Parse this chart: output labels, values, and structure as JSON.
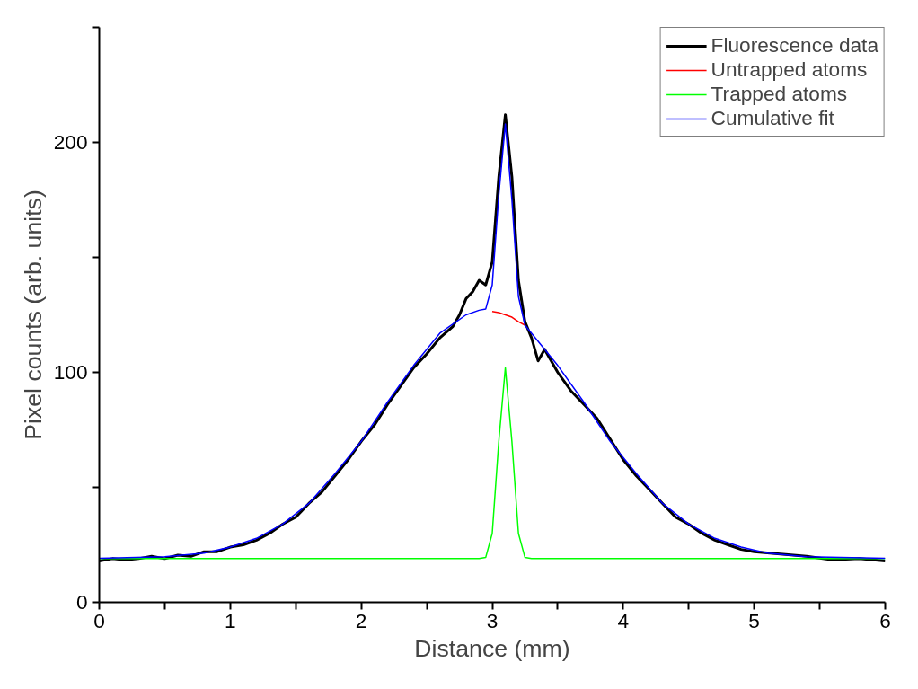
{
  "chart_data": {
    "type": "line",
    "xlabel": "Distance (mm)",
    "ylabel": "Pixel counts (arb. units)",
    "xlim": [
      0,
      6
    ],
    "ylim": [
      0,
      250
    ],
    "xticks": [
      0,
      {
        "value": 0.5,
        "label": null
      },
      1,
      {
        "value": 1.5,
        "label": null
      },
      2,
      {
        "value": 2.5,
        "label": null
      },
      3,
      {
        "value": 3.5,
        "label": null
      },
      4,
      {
        "value": 4.5,
        "label": null
      },
      5,
      {
        "value": 5.5,
        "label": null
      },
      6
    ],
    "yticks": [
      0,
      {
        "value": 50,
        "label": null
      },
      100,
      {
        "value": 150,
        "label": null
      },
      200,
      {
        "value": 250,
        "label": null
      }
    ],
    "grid": false,
    "legend": "top right",
    "marker": "none",
    "line_style": "solid",
    "series": [
      {
        "name": "Fluorescence data",
        "color": "#000000",
        "x": [
          0,
          0.1,
          0.2,
          0.3,
          0.4,
          0.5,
          0.6,
          0.7,
          0.8,
          0.9,
          1.0,
          1.1,
          1.2,
          1.3,
          1.4,
          1.5,
          1.6,
          1.7,
          1.8,
          1.9,
          2.0,
          2.1,
          2.2,
          2.3,
          2.4,
          2.5,
          2.6,
          2.7,
          2.75,
          2.8,
          2.85,
          2.9,
          2.95,
          3.0,
          3.05,
          3.1,
          3.15,
          3.2,
          3.25,
          3.3,
          3.35,
          3.4,
          3.5,
          3.6,
          3.7,
          3.8,
          3.9,
          4.0,
          4.1,
          4.2,
          4.3,
          4.4,
          4.5,
          4.6,
          4.7,
          4.8,
          4.9,
          5.0,
          5.2,
          5.4,
          5.6,
          5.8,
          6.0
        ],
        "values": [
          18,
          19,
          18.5,
          19,
          20,
          19,
          20.5,
          20,
          22,
          22,
          24,
          25,
          27,
          30,
          34,
          37,
          43,
          48,
          55,
          62,
          70,
          77,
          86,
          94,
          102,
          108,
          115,
          120,
          125,
          132,
          135,
          140,
          138,
          148,
          185,
          212,
          185,
          140,
          122,
          115,
          105,
          110,
          100,
          92,
          86,
          80,
          71,
          62,
          55,
          49,
          43,
          37,
          34,
          30,
          27,
          25,
          23,
          22,
          21,
          20,
          18.5,
          19,
          18
        ]
      },
      {
        "name": "Untrapped atoms",
        "color": "#ff0000",
        "x": [
          3.0,
          3.05,
          3.1,
          3.15,
          3.2,
          3.25
        ],
        "values": [
          126.5,
          126,
          125,
          124,
          122,
          120.5
        ]
      },
      {
        "name": "Trapped atoms",
        "color": "#00ff00",
        "x": [
          0,
          2.9,
          2.95,
          3.0,
          3.05,
          3.1,
          3.15,
          3.2,
          3.25,
          3.3,
          6.0
        ],
        "values": [
          19,
          19,
          19.5,
          30,
          70,
          102,
          70,
          30,
          19.5,
          19,
          19
        ]
      },
      {
        "name": "Cumulative fit",
        "color": "#0000ff",
        "x": [
          0,
          0.5,
          0.8,
          1.0,
          1.2,
          1.4,
          1.6,
          1.8,
          2.0,
          2.2,
          2.4,
          2.6,
          2.8,
          2.9,
          2.95,
          3.0,
          3.05,
          3.1,
          3.15,
          3.2,
          3.25,
          3.3,
          3.5,
          3.7,
          3.9,
          4.1,
          4.3,
          4.5,
          4.7,
          4.9,
          5.1,
          5.4,
          6.0
        ],
        "values": [
          19.1,
          19.8,
          21.4,
          24,
          27.8,
          34,
          43,
          56,
          70,
          87,
          103,
          117,
          125,
          127,
          127.5,
          138,
          177,
          208,
          175,
          133,
          120.5,
          117,
          103,
          87,
          70,
          56,
          43,
          34,
          27.8,
          24,
          21.4,
          19.8,
          19.1
        ]
      }
    ]
  }
}
